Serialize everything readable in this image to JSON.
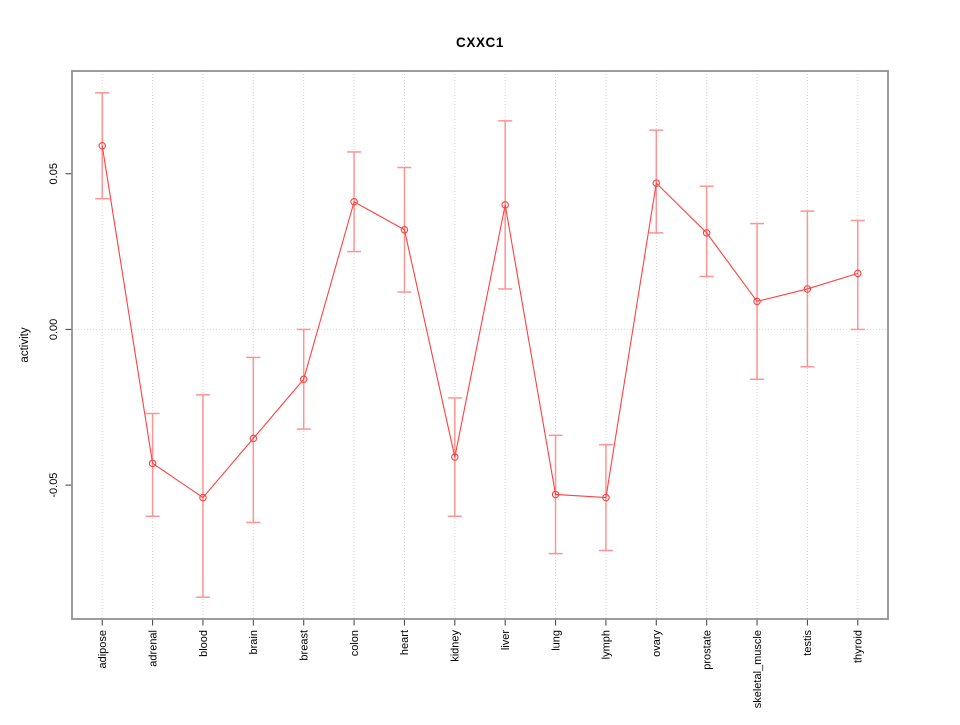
{
  "chart_data": {
    "type": "line",
    "title": "CXXC1",
    "xlabel": "",
    "ylabel": "activity",
    "categories": [
      "adipose",
      "adrenal",
      "blood",
      "brain",
      "breast",
      "colon",
      "heart",
      "kidney",
      "liver",
      "lung",
      "lymph",
      "ovary",
      "prostate",
      "skeletal_muscle",
      "testis",
      "thyroid"
    ],
    "series": [
      {
        "name": "activity",
        "values": [
          0.059,
          -0.043,
          -0.054,
          -0.035,
          -0.016,
          0.041,
          0.032,
          -0.041,
          0.04,
          -0.053,
          -0.054,
          0.047,
          0.031,
          0.009,
          0.013,
          0.018
        ],
        "ci_upper": [
          0.076,
          -0.027,
          -0.021,
          -0.009,
          0.0,
          0.057,
          0.052,
          -0.022,
          0.067,
          -0.034,
          -0.037,
          0.064,
          0.046,
          0.034,
          0.038,
          0.035
        ],
        "ci_lower": [
          0.042,
          -0.06,
          -0.086,
          -0.062,
          -0.032,
          0.025,
          0.012,
          -0.06,
          0.013,
          -0.072,
          -0.071,
          0.031,
          0.017,
          -0.016,
          -0.012,
          0.0
        ]
      }
    ],
    "yticks": [
      {
        "v": 0.05,
        "label": "0.05"
      },
      {
        "v": 0.0,
        "label": "0.00"
      },
      {
        "v": -0.05,
        "label": "-0.05"
      }
    ],
    "ylim": [
      -0.093,
      0.083
    ],
    "marker": "open-circle",
    "error_bars": true,
    "legend": "none",
    "grid": {
      "vertical": "dotted line at every category",
      "horizontal": "dotted line at 0.00 only"
    },
    "colors": {
      "series_line": "#ff4040",
      "marker": "#ff4040",
      "error_bar": "#ff9494",
      "grid": "#d4d4d4",
      "frame": "#929292",
      "axis_tick": "#4d4d4d",
      "text": "#000000",
      "background": "#ffffff"
    }
  }
}
